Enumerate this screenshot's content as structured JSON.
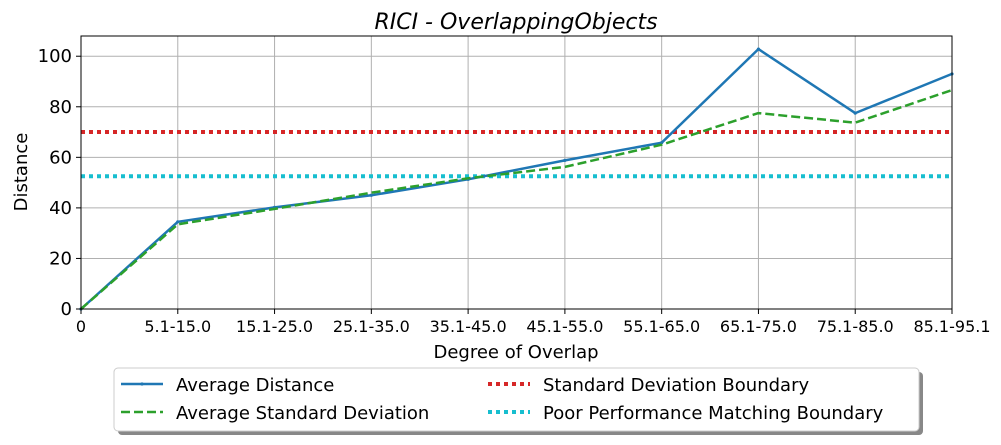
{
  "chart_data": {
    "type": "line",
    "title": "RICI - OverlappingObjects",
    "xlabel": "Degree of Overlap",
    "ylabel": "Distance",
    "categories": [
      "0",
      "5.1-15.0",
      "15.1-25.0",
      "25.1-35.0",
      "35.1-45.0",
      "45.1-55.0",
      "55.1-65.0",
      "65.1-75.0",
      "75.1-85.0",
      "85.1-95.1"
    ],
    "ylim": [
      0,
      108
    ],
    "yticks": [
      0,
      20,
      40,
      60,
      80,
      100
    ],
    "grid": true,
    "legend_position": "bottom-center",
    "series": [
      {
        "name": "Average Distance",
        "values": [
          0,
          34.5,
          40.2,
          45.0,
          51.3,
          58.8,
          65.8,
          102.8,
          77.5,
          93.0
        ],
        "color": "#1f77b4",
        "style": "solid"
      },
      {
        "name": "Average Standard Deviation",
        "values": [
          0,
          33.5,
          39.6,
          46.0,
          51.7,
          56.2,
          65.0,
          77.5,
          73.7,
          86.6
        ],
        "color": "#2ca02c",
        "style": "dashed"
      }
    ],
    "reference_lines": [
      {
        "name": "Standard Deviation Boundary",
        "value": 70,
        "color": "#d62728",
        "style": "dotted"
      },
      {
        "name": "Poor Performance Matching Boundary",
        "value": 52.5,
        "color": "#17becf",
        "style": "dotted"
      }
    ]
  }
}
